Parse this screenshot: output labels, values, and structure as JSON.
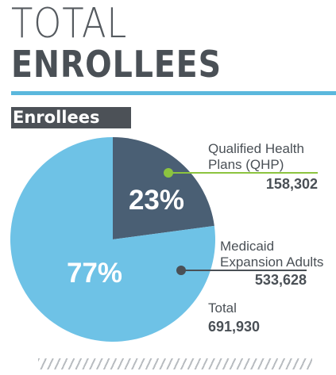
{
  "header": {
    "title_line1": "TOTAL",
    "title_line2": "ENROLLEES"
  },
  "section_label": "Enrollees",
  "colors": {
    "qhp": "#4a5f74",
    "medicaid": "#6ec2e6",
    "accent_green": "#8cc43f",
    "text": "#4a5056",
    "rule": "#5bb8dd"
  },
  "chart_data": {
    "type": "pie",
    "slices": [
      {
        "label_lines": [
          "Qualified Health",
          "Plans (QHP)"
        ],
        "value": 158302,
        "value_label": "158,302",
        "percent_label": "23%",
        "color": "#4a5f74"
      },
      {
        "label_lines": [
          "Medicaid",
          "Expansion Adults"
        ],
        "value": 533628,
        "value_label": "533,628",
        "percent_label": "77%",
        "color": "#6ec2e6"
      }
    ],
    "total": {
      "label": "Total",
      "value": 691930,
      "value_label": "691,930"
    }
  }
}
